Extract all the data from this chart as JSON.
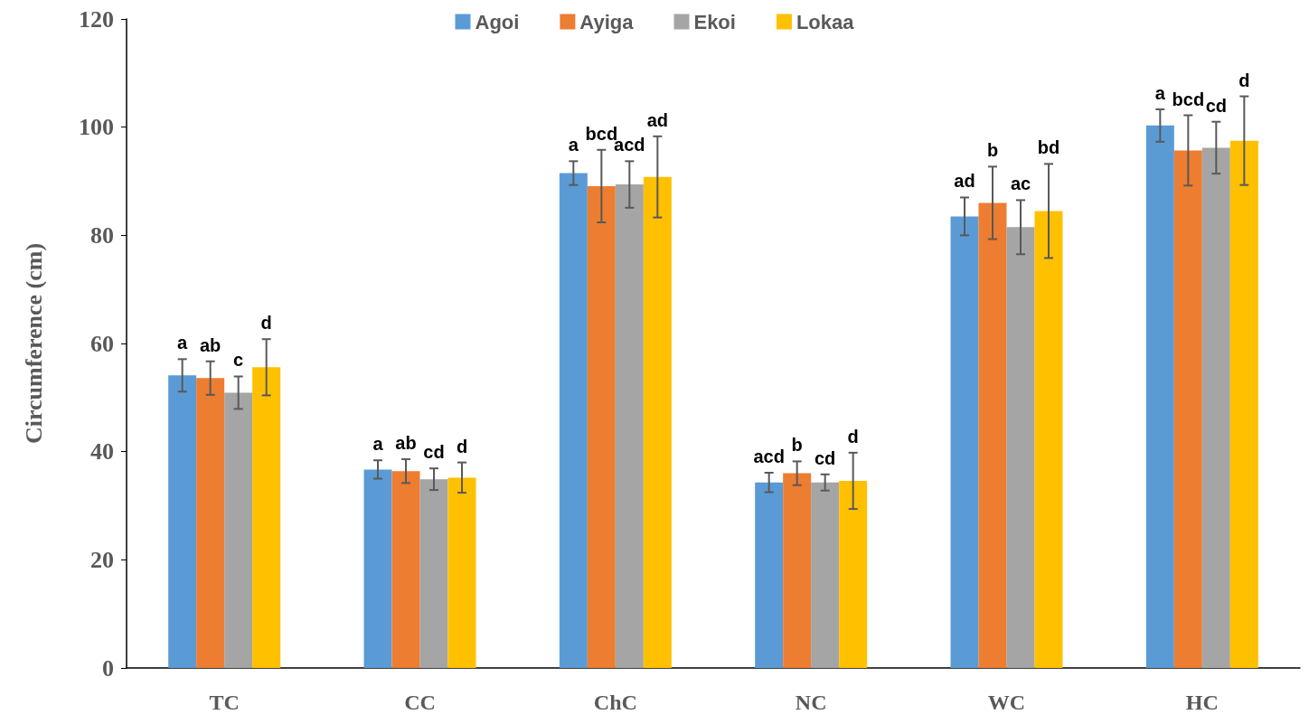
{
  "chart_data": {
    "type": "bar",
    "ylabel": "Circumference (cm)",
    "categories": [
      "TC",
      "CC",
      "ChC",
      "NC",
      "WC",
      "HC"
    ],
    "ylim": [
      0,
      120
    ],
    "yticks": [
      0,
      20,
      40,
      60,
      80,
      100,
      120
    ],
    "grid": false,
    "legend": "top",
    "series": [
      {
        "name": "Agoi",
        "color": "#5b9bd5",
        "values": [
          54.1,
          36.7,
          91.5,
          34.3,
          83.5,
          100.3
        ],
        "errors": [
          3,
          1.7,
          2.2,
          1.8,
          3.5,
          3
        ],
        "value_labels": [
          "a",
          "a",
          "a",
          "acd",
          "ad",
          "a"
        ]
      },
      {
        "name": "Ayiga",
        "color": "#ed7d31",
        "values": [
          53.6,
          36.4,
          89.1,
          36,
          86,
          95.7
        ],
        "errors": [
          3.1,
          2.2,
          6.7,
          2.2,
          6.7,
          6.5
        ],
        "value_labels": [
          "ab",
          "ab",
          "bcd",
          "b",
          "b",
          "bcd"
        ]
      },
      {
        "name": "Ekoi",
        "color": "#a5a5a5",
        "values": [
          50.9,
          34.9,
          89.4,
          34.3,
          81.5,
          96.2
        ],
        "errors": [
          3,
          2,
          4.3,
          1.5,
          5,
          4.8
        ],
        "value_labels": [
          "c",
          "cd",
          "acd",
          "cd",
          "ac",
          "cd"
        ]
      },
      {
        "name": "Lokaa",
        "color": "#ffc000",
        "values": [
          55.6,
          35.2,
          90.8,
          34.6,
          84.5,
          97.5
        ],
        "errors": [
          5.2,
          2.8,
          7.5,
          5.2,
          8.7,
          8.2
        ],
        "value_labels": [
          "d",
          "d",
          "ad",
          "d",
          "bd",
          "d"
        ]
      }
    ]
  }
}
